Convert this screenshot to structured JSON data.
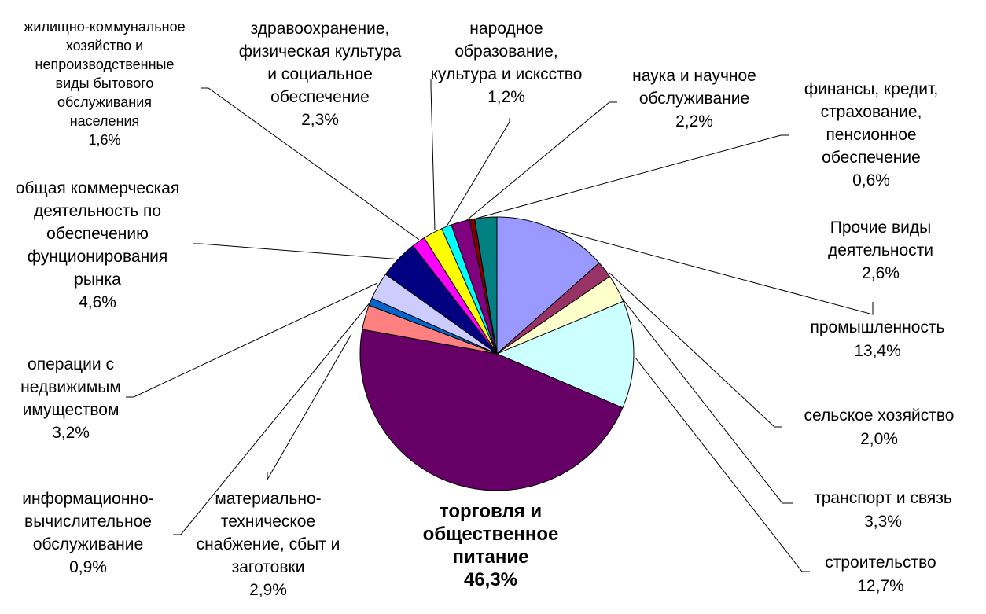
{
  "chart_data": {
    "type": "pie",
    "title": "",
    "slices": [
      {
        "name": "промышленность",
        "value": 13.4,
        "label": "13,4%",
        "color": "#9999ff"
      },
      {
        "name": "сельское хозяйство",
        "value": 2.0,
        "label": "2,0%",
        "color": "#993366"
      },
      {
        "name": "транспорт и связь",
        "value": 3.3,
        "label": "3,3%",
        "color": "#ffffcc"
      },
      {
        "name": "строительство",
        "value": 12.7,
        "label": "12,7%",
        "color": "#ccffff"
      },
      {
        "name": "торговля и общественное питание",
        "value": 46.3,
        "label": "46,3%",
        "color": "#660066"
      },
      {
        "name": "материально-техническое снабжение, сбыт и заготовки",
        "value": 2.9,
        "label": "2,9%",
        "color": "#ff8080"
      },
      {
        "name": "информационно-вычислительное обслуживание",
        "value": 0.9,
        "label": "0,9%",
        "color": "#0066cc"
      },
      {
        "name": "операции с недвижимым имуществом",
        "value": 3.2,
        "label": "3,2%",
        "color": "#ccccff"
      },
      {
        "name": "общая коммерческая деятельность по обеспечению фунционирования рынка",
        "value": 4.6,
        "label": "4,6%",
        "color": "#000080"
      },
      {
        "name": "жилищно-коммунальное хозяйство и непроизводственные виды бытового обслуживания населения",
        "value": 1.6,
        "label": "1,6%",
        "color": "#ff00ff"
      },
      {
        "name": "здравоохранение, физическая культура и социальное обеспечение",
        "value": 2.3,
        "label": "2,3%",
        "color": "#ffff00"
      },
      {
        "name": "народное образование, культура и исксство",
        "value": 1.2,
        "label": "1,2%",
        "color": "#00ffff"
      },
      {
        "name": "наука и научное обслуживание",
        "value": 2.2,
        "label": "2,2%",
        "color": "#800080"
      },
      {
        "name": "финансы, кредит, страхование, пенсионное обеспечение",
        "value": 0.6,
        "label": "0,6%",
        "color": "#800000"
      },
      {
        "name": "Прочие виды деятельности",
        "value": 2.6,
        "label": "2,6%",
        "color": "#008080"
      }
    ]
  },
  "labels": [
    {
      "lines": [
        "промышленность",
        "13,4%"
      ]
    },
    {
      "lines": [
        "сельское хозяйство",
        "2,0%"
      ]
    },
    {
      "lines": [
        "транспорт и связь",
        "3,3%"
      ]
    },
    {
      "lines": [
        "строительство",
        "12,7%"
      ]
    },
    {
      "lines": [
        "торговля и",
        "общественное",
        "питание",
        "46,3%"
      ]
    },
    {
      "lines": [
        "материально-",
        "техническое",
        "снабжение, сбыт и",
        "заготовки",
        "2,9%"
      ]
    },
    {
      "lines": [
        "информационно-",
        "вычислительное",
        "обслуживание",
        "0,9%"
      ]
    },
    {
      "lines": [
        "операции с",
        "недвижимым",
        "имуществом",
        "3,2%"
      ]
    },
    {
      "lines": [
        "общая коммерческая",
        "деятельность по",
        "обеспечению",
        "фунционирования",
        "рынка",
        "4,6%"
      ]
    },
    {
      "lines": [
        "жилищно-коммунальное",
        "хозяйство и",
        "непроизводственные",
        "виды бытового",
        "обслуживания",
        "населения",
        "1,6%"
      ]
    },
    {
      "lines": [
        "здравоохранение,",
        "физическая культура",
        "и социальное",
        "обеспечение",
        "2,3%"
      ]
    },
    {
      "lines": [
        "народное",
        "образование,",
        "культура и исксство",
        "1,2%"
      ]
    },
    {
      "lines": [
        "наука и научное",
        "обслуживание",
        "2,2%"
      ]
    },
    {
      "lines": [
        "финансы, кредит,",
        "страхование,",
        "пенсионное",
        "обеспечение",
        "0,6%"
      ]
    },
    {
      "lines": [
        "Прочие виды",
        "деятельности",
        "2,6%"
      ]
    }
  ]
}
